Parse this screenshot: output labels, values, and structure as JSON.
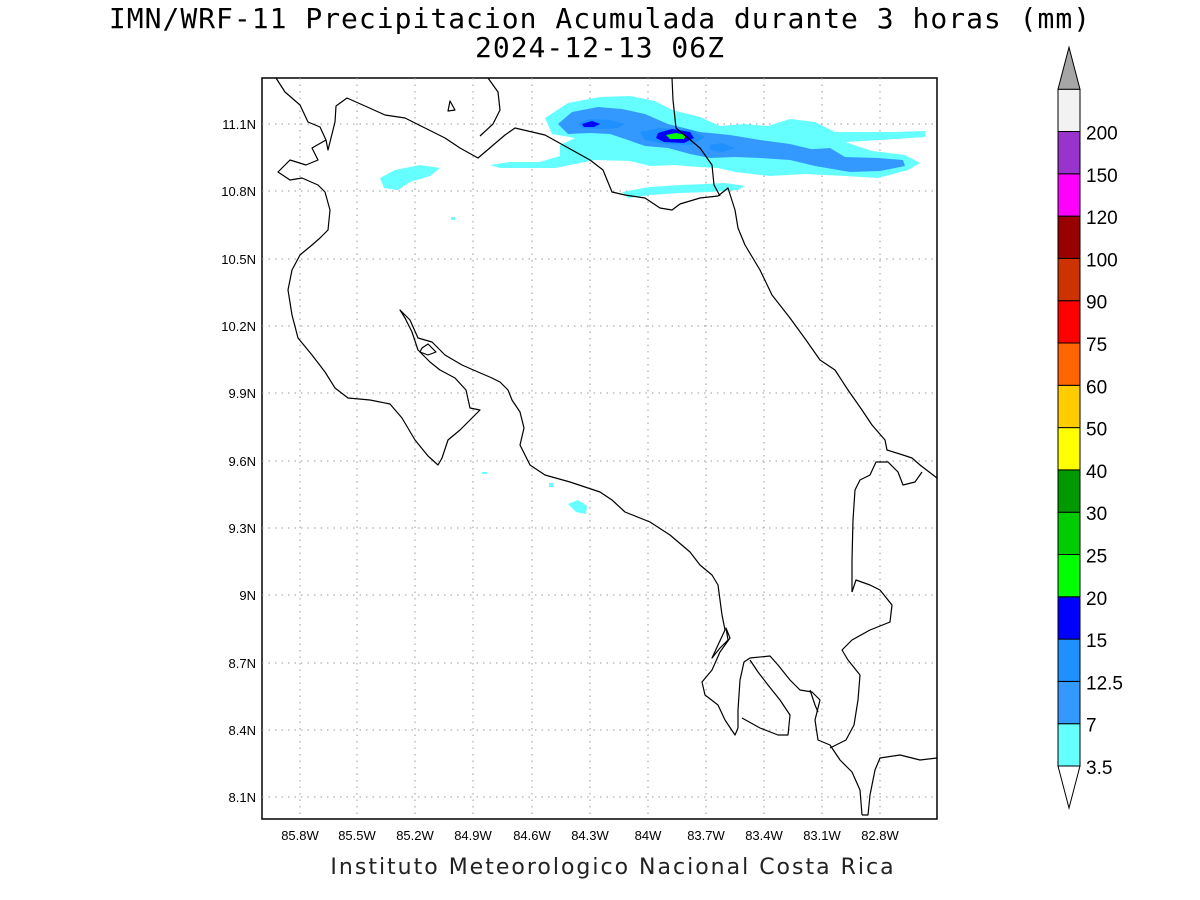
{
  "title_line1": "IMN/WRF-11 Precipitacion Acumulada durante 3 horas (mm)",
  "title_line2": "2024-12-13 06Z",
  "footer": "Instituto Meteorologico Nacional Costa Rica",
  "lon_ticks": [
    "85.8W",
    "85.5W",
    "85.2W",
    "84.9W",
    "84.6W",
    "84.3W",
    "84W",
    "83.7W",
    "83.4W",
    "83.1W",
    "82.8W"
  ],
  "lat_ticks": [
    "11.1N",
    "10.8N",
    "10.5N",
    "10.2N",
    "9.9N",
    "9.6N",
    "9.3N",
    "9N",
    "8.7N",
    "8.4N",
    "8.1N"
  ],
  "colorbar": {
    "labels": [
      "3.5",
      "7",
      "12.5",
      "15",
      "20",
      "25",
      "30",
      "40",
      "50",
      "60",
      "75",
      "90",
      "100",
      "120",
      "150",
      "200"
    ],
    "colors": [
      "#66ffff",
      "#3399ff",
      "#1e90ff",
      "#0000ff",
      "#00ff00",
      "#00cc00",
      "#009900",
      "#ffff00",
      "#ffcc00",
      "#ff6600",
      "#ff0000",
      "#cc3300",
      "#990000",
      "#ff00ff",
      "#9933cc",
      "#f2f2f2",
      "#a6a6a6"
    ]
  },
  "precip_colors": {
    "c35": "#66ffff",
    "c7": "#3399ff",
    "c125": "#1e90ff",
    "c15": "#0000ff",
    "c20": "#00ff00"
  }
}
